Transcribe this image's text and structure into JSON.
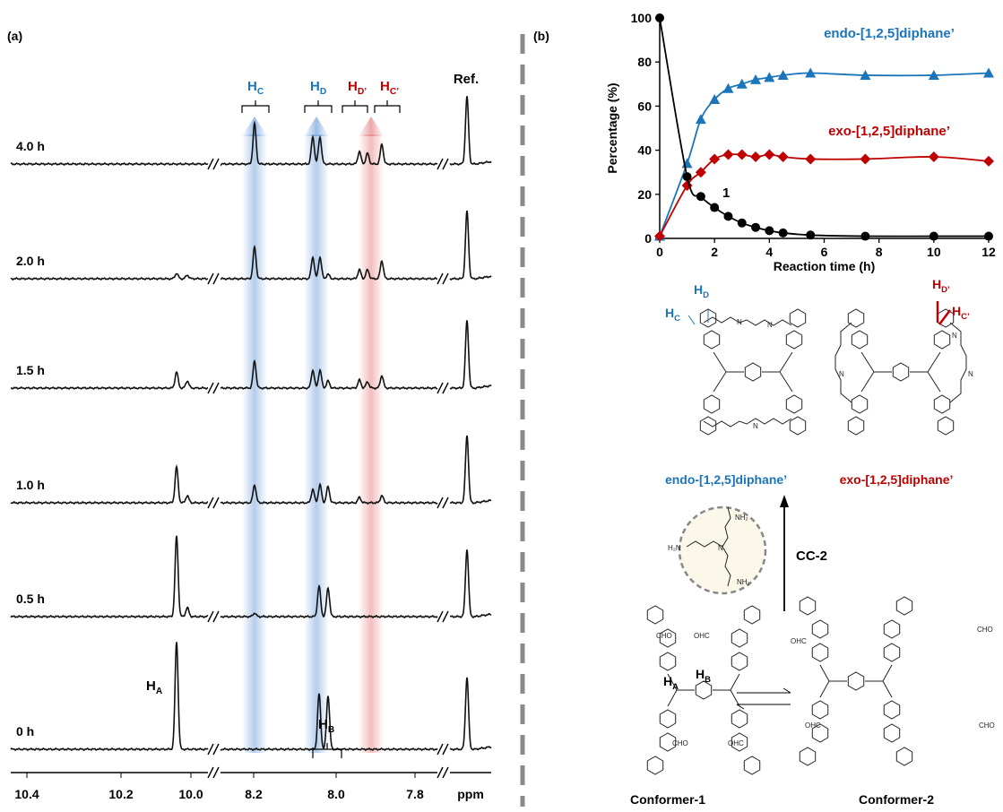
{
  "panel_a": {
    "label": "(a)",
    "traces": [
      "4.0 h",
      "2.0 h",
      "1.5 h",
      "1.0 h",
      "0.5 h",
      "0 h"
    ],
    "peaks": [
      {
        "main": "H",
        "sub": "C"
      },
      {
        "main": "H",
        "sub": "D"
      },
      {
        "main": "H",
        "sub": "D’"
      },
      {
        "main": "H",
        "sub": "C’"
      }
    ],
    "ref": "Ref.",
    "h_a": {
      "main": "H",
      "sub": "A"
    },
    "h_b": {
      "main": "H",
      "sub": "B"
    },
    "axis_ticks": [
      "10.4",
      "10.2",
      "10.0",
      "8.2",
      "8.0",
      "7.8"
    ],
    "axis_unit": "ppm"
  },
  "chart_data": {
    "type": "scatter",
    "label": "(b)",
    "x_label": "Reaction time (h)",
    "y_label": "Percentage (%)",
    "x": [
      0,
      1,
      1.5,
      2,
      2.5,
      3,
      3.5,
      4,
      4.5,
      5.5,
      7.5,
      10,
      12
    ],
    "series": [
      {
        "name": "endo-[1,2,5]diphane’",
        "color": "#1b75bb",
        "marker": "triangle",
        "values": [
          1,
          34,
          54,
          63,
          68,
          70,
          72,
          73,
          74,
          75,
          74,
          74,
          75
        ]
      },
      {
        "name": "exo-[1,2,5]diphane’",
        "color": "#c00000",
        "marker": "diamond",
        "values": [
          1,
          24,
          30,
          36,
          38,
          38,
          37,
          38,
          37,
          36,
          36,
          37,
          35
        ]
      },
      {
        "name": "1",
        "color": "#000000",
        "marker": "circle",
        "values": [
          100,
          28,
          19,
          14,
          10,
          7,
          5,
          3.5,
          2.5,
          1.5,
          1,
          1,
          1
        ]
      }
    ],
    "xlim": [
      0,
      12
    ],
    "xticks": [
      0,
      2,
      4,
      6,
      8,
      10,
      12
    ],
    "ylim": [
      0,
      100
    ],
    "yticks": [
      0,
      20,
      40,
      60,
      80,
      100
    ]
  },
  "scheme": {
    "endo_name": "endo-[1,2,5]diphane’",
    "exo_name": "exo-[1,2,5]diphane’",
    "endo_h": [
      {
        "main": "H",
        "sub": "C"
      },
      {
        "main": "H",
        "sub": "D"
      }
    ],
    "exo_h": [
      {
        "main": "H",
        "sub": "D’"
      },
      {
        "main": "H",
        "sub": "C’"
      }
    ],
    "reagent": "CC-2",
    "amine": "NH₂",
    "amine_rev": "H₂N",
    "nitrogen": "N",
    "conformer_h": [
      {
        "main": "H",
        "sub": "A"
      },
      {
        "main": "H",
        "sub": "B"
      }
    ],
    "aldehyde": "CHO",
    "aldehyde_rev": "OHC",
    "conformer_1": "Conformer-1",
    "conformer_2": "Conformer-2"
  }
}
